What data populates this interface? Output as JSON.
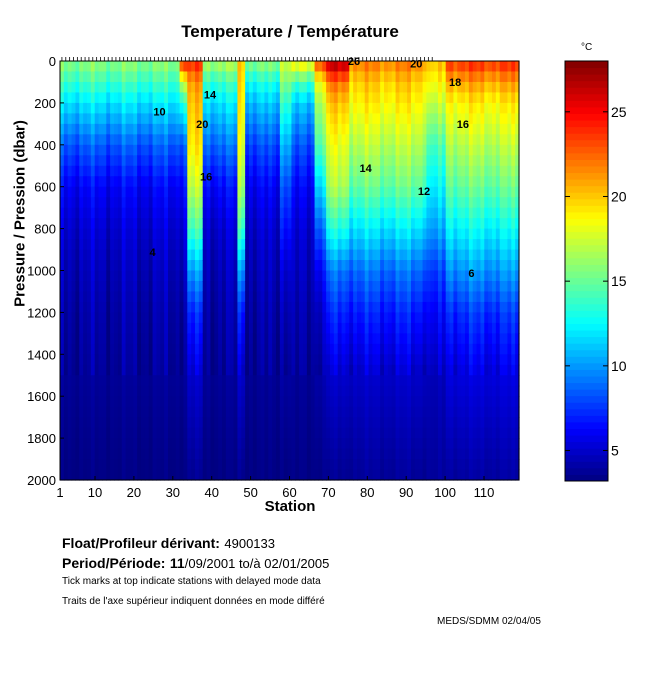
{
  "chart_data": {
    "type": "heatmap",
    "title": "Temperature / Température",
    "xlabel": "Station",
    "ylabel": "Pressure / Pression (dbar)",
    "xlim": [
      1,
      119
    ],
    "ylim": [
      2000,
      0
    ],
    "x_ticks": [
      1,
      10,
      20,
      30,
      40,
      50,
      60,
      70,
      80,
      90,
      100,
      110
    ],
    "y_ticks": [
      0,
      200,
      400,
      600,
      800,
      1000,
      1200,
      1400,
      1600,
      1800,
      2000
    ],
    "colorbar": {
      "label": "°C",
      "range": [
        3.2,
        28
      ],
      "ticks": [
        5,
        10,
        15,
        20,
        25
      ],
      "colormap": "jet"
    },
    "profile_depths": [
      0,
      100,
      200,
      400,
      600,
      800,
      1000,
      1200,
      1500,
      2000
    ],
    "profiles": [
      {
        "stations": [
          1,
          31
        ],
        "temps": [
          16,
          14,
          12,
          8.5,
          6.2,
          5.2,
          4.6,
          4.2,
          3.8,
          3.3
        ]
      },
      {
        "stations": [
          32,
          33
        ],
        "temps": [
          25,
          18,
          14,
          9,
          7,
          5.8,
          5,
          4.4,
          3.9,
          3.3
        ]
      },
      {
        "stations": [
          34,
          37
        ],
        "temps": [
          24,
          21,
          20,
          19,
          17,
          14,
          10,
          7,
          5,
          3.6
        ]
      },
      {
        "stations": [
          38,
          46
        ],
        "temps": [
          17,
          14,
          12,
          9,
          6.5,
          5.2,
          4.6,
          4.2,
          3.8,
          3.3
        ]
      },
      {
        "stations": [
          47,
          48
        ],
        "temps": [
          20,
          19.5,
          19,
          18,
          16.5,
          14,
          10,
          7,
          5,
          3.6
        ]
      },
      {
        "stations": [
          49,
          57
        ],
        "temps": [
          16,
          13,
          11,
          8,
          6,
          5,
          4.5,
          4.1,
          3.7,
          3.3
        ]
      },
      {
        "stations": [
          58,
          60
        ],
        "temps": [
          18,
          16,
          14,
          11,
          8.5,
          7,
          5.5,
          4.8,
          4.1,
          3.4
        ]
      },
      {
        "stations": [
          61,
          66
        ],
        "temps": [
          19,
          14,
          11,
          8,
          6,
          5,
          4.5,
          4.1,
          3.7,
          3.3
        ]
      },
      {
        "stations": [
          67,
          69
        ],
        "temps": [
          24,
          19,
          17,
          15,
          12,
          9,
          6.5,
          5.2,
          4.3,
          3.5
        ]
      },
      {
        "stations": [
          70,
          75
        ],
        "temps": [
          27,
          22,
          20,
          18,
          16.5,
          13,
          9,
          7,
          5,
          3.6
        ]
      },
      {
        "stations": [
          76,
          95
        ],
        "temps": [
          22,
          20,
          19,
          17,
          15,
          12,
          9,
          7,
          5,
          3.8
        ]
      },
      {
        "stations": [
          96,
          100
        ],
        "temps": [
          20,
          18.5,
          17,
          14,
          12,
          10,
          7.5,
          6,
          4.5,
          3.8
        ]
      },
      {
        "stations": [
          101,
          119
        ],
        "temps": [
          24,
          21,
          19,
          17,
          15,
          12.5,
          10,
          7.5,
          5.5,
          4
        ]
      }
    ],
    "delayed_mode_stations": [
      1,
      97
    ],
    "contour_labels": [
      {
        "text": "20",
        "station": 36,
        "pressure": 320
      },
      {
        "text": "14",
        "station": 38,
        "pressure": 180
      },
      {
        "text": "10",
        "station": 25,
        "pressure": 260
      },
      {
        "text": "16",
        "station": 37,
        "pressure": 570
      },
      {
        "text": "4",
        "station": 24,
        "pressure": 930
      },
      {
        "text": "20",
        "station": 91,
        "pressure": 30
      },
      {
        "text": "18",
        "station": 101,
        "pressure": 120
      },
      {
        "text": "16",
        "station": 103,
        "pressure": 320
      },
      {
        "text": "14",
        "station": 78,
        "pressure": 530
      },
      {
        "text": "12",
        "station": 93,
        "pressure": 640
      },
      {
        "text": "6",
        "station": 106,
        "pressure": 1030
      },
      {
        "text": "26",
        "station": 75,
        "pressure": 20
      }
    ]
  },
  "info": {
    "float_label": "Float/Profileur dérivant:",
    "float_id": "4900133",
    "period_label": "Period/Période:",
    "period_start_day": "11",
    "period_value": "/09/2001  to/à  02/01/2005",
    "note_en": "Tick marks at top indicate stations with delayed mode data",
    "note_fr": "Traits de l'axe supérieur indiquent données en mode différé",
    "credit": "MEDS/SDMM  02/04/05"
  }
}
